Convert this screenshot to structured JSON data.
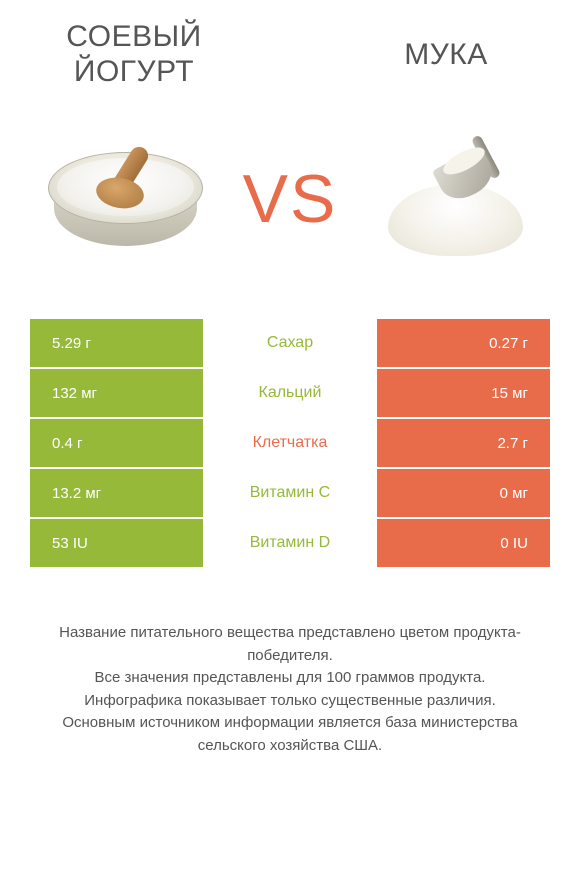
{
  "colors": {
    "green": "#96b93a",
    "orange": "#e86c4a",
    "text": "#555555",
    "white": "#ffffff"
  },
  "titles": {
    "left": "Соевый йогурт",
    "right": "Мука"
  },
  "vs_label": "VS",
  "rows": [
    {
      "left_value": "5.29 г",
      "nutrient": "Сахар",
      "right_value": "0.27 г",
      "winner": "left"
    },
    {
      "left_value": "132 мг",
      "nutrient": "Кальций",
      "right_value": "15 мг",
      "winner": "left"
    },
    {
      "left_value": "0.4 г",
      "nutrient": "Клетчатка",
      "right_value": "2.7 г",
      "winner": "right"
    },
    {
      "left_value": "13.2 мг",
      "nutrient": "Витамин C",
      "right_value": "0 мг",
      "winner": "left"
    },
    {
      "left_value": "53 IU",
      "nutrient": "Витамин D",
      "right_value": "0 IU",
      "winner": "left"
    }
  ],
  "footnote": {
    "line1": "Название питательного вещества представлено цветом продукта-победителя.",
    "line2": "Все значения представлены для 100 граммов продукта.",
    "line3": "Инфографика показывает только существенные различия.",
    "line4": "Основным источником информации является база министерства сельского хозяйства США."
  }
}
